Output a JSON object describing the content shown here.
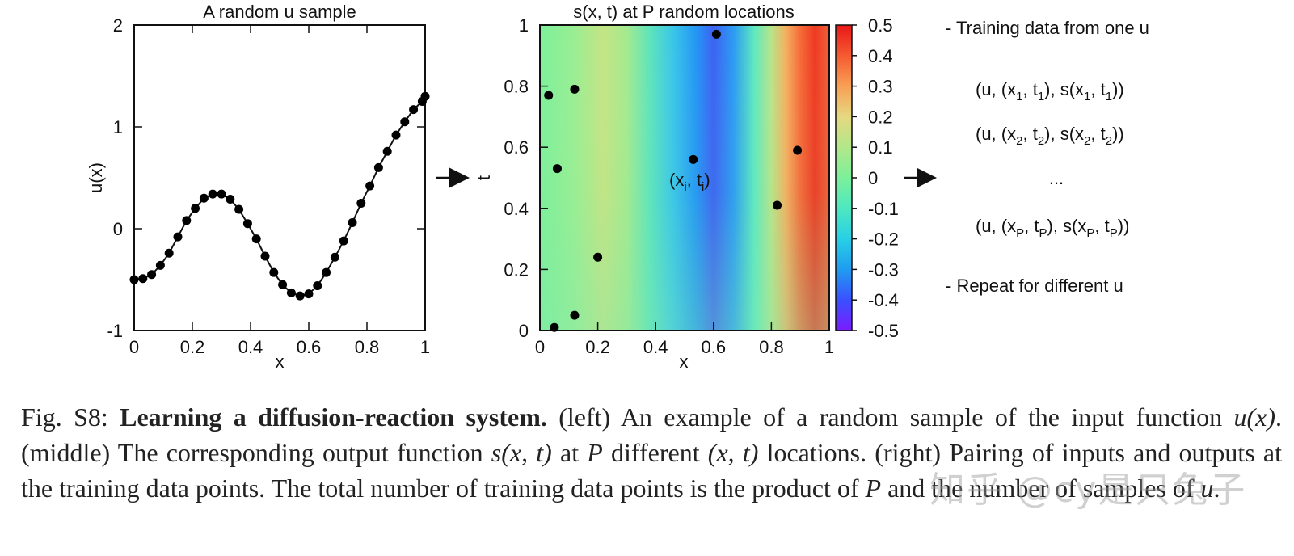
{
  "chart_data": [
    {
      "type": "line",
      "title": "A random u sample",
      "xlabel": "x",
      "ylabel": "u(x)",
      "xlim": [
        0,
        1
      ],
      "ylim": [
        -1,
        2
      ],
      "x_ticks": [
        "0",
        "0.2",
        "0.4",
        "0.6",
        "0.8",
        "1"
      ],
      "y_ticks": [
        "-1",
        "0",
        "1",
        "2"
      ],
      "markers": true,
      "x": [
        0,
        0.03,
        0.06,
        0.09,
        0.12,
        0.15,
        0.18,
        0.21,
        0.24,
        0.27,
        0.3,
        0.33,
        0.36,
        0.39,
        0.42,
        0.45,
        0.48,
        0.51,
        0.54,
        0.57,
        0.6,
        0.63,
        0.66,
        0.69,
        0.72,
        0.75,
        0.78,
        0.81,
        0.84,
        0.87,
        0.9,
        0.93,
        0.96,
        0.99,
        1.0
      ],
      "y": [
        -0.5,
        -0.49,
        -0.45,
        -0.36,
        -0.24,
        -0.08,
        0.08,
        0.2,
        0.3,
        0.34,
        0.34,
        0.29,
        0.19,
        0.05,
        -0.1,
        -0.27,
        -0.43,
        -0.55,
        -0.63,
        -0.66,
        -0.64,
        -0.56,
        -0.43,
        -0.28,
        -0.12,
        0.06,
        0.25,
        0.42,
        0.6,
        0.76,
        0.92,
        1.05,
        1.17,
        1.25,
        1.3
      ]
    },
    {
      "type": "heatmap",
      "title": "s(x, t) at P random locations",
      "xlabel": "x",
      "ylabel": "t",
      "xlim": [
        0,
        1
      ],
      "ylim": [
        0,
        1
      ],
      "x_ticks": [
        "0",
        "0.2",
        "0.4",
        "0.6",
        "0.8",
        "1"
      ],
      "y_ticks": [
        "0",
        "0.2",
        "0.4",
        "0.6",
        "0.8",
        "1"
      ],
      "colorbar": {
        "range": [
          -0.5,
          0.5
        ],
        "ticks": [
          "0.5",
          "0.4",
          "0.3",
          "0.2",
          "0.1",
          "0",
          "-0.1",
          "-0.2",
          "-0.3",
          "-0.4",
          "-0.5"
        ]
      },
      "points": [
        {
          "x": 0.61,
          "t": 0.97
        },
        {
          "x": 0.03,
          "t": 0.77
        },
        {
          "x": 0.12,
          "t": 0.79
        },
        {
          "x": 0.06,
          "t": 0.53
        },
        {
          "x": 0.53,
          "t": 0.56
        },
        {
          "x": 0.89,
          "t": 0.59
        },
        {
          "x": 0.82,
          "t": 0.41
        },
        {
          "x": 0.2,
          "t": 0.24
        },
        {
          "x": 0.12,
          "t": 0.05
        },
        {
          "x": 0.05,
          "t": 0.01
        }
      ],
      "point_annotation": "(x_i, t_i)"
    }
  ],
  "right_panel": {
    "heading": "- Training data from one u",
    "rows": [
      "1",
      "2",
      "...",
      "P"
    ],
    "footer": "- Repeat for different u"
  },
  "caption": {
    "label": "Fig. S8:",
    "title": "Learning a diffusion-reaction system.",
    "text_parts": [
      " (left) An example of a random sample of the input function ",
      "u(x)",
      ". (middle) The corresponding output function ",
      "s(x, t)",
      " at ",
      "P",
      " different ",
      "(x, t)",
      " locations. (right) Pairing of inputs and outputs at the training data points. The total number of training data points is the product of ",
      "P",
      " and the number of samples of ",
      "u",
      "."
    ]
  },
  "watermark": "知乎 @cy是只兔子"
}
